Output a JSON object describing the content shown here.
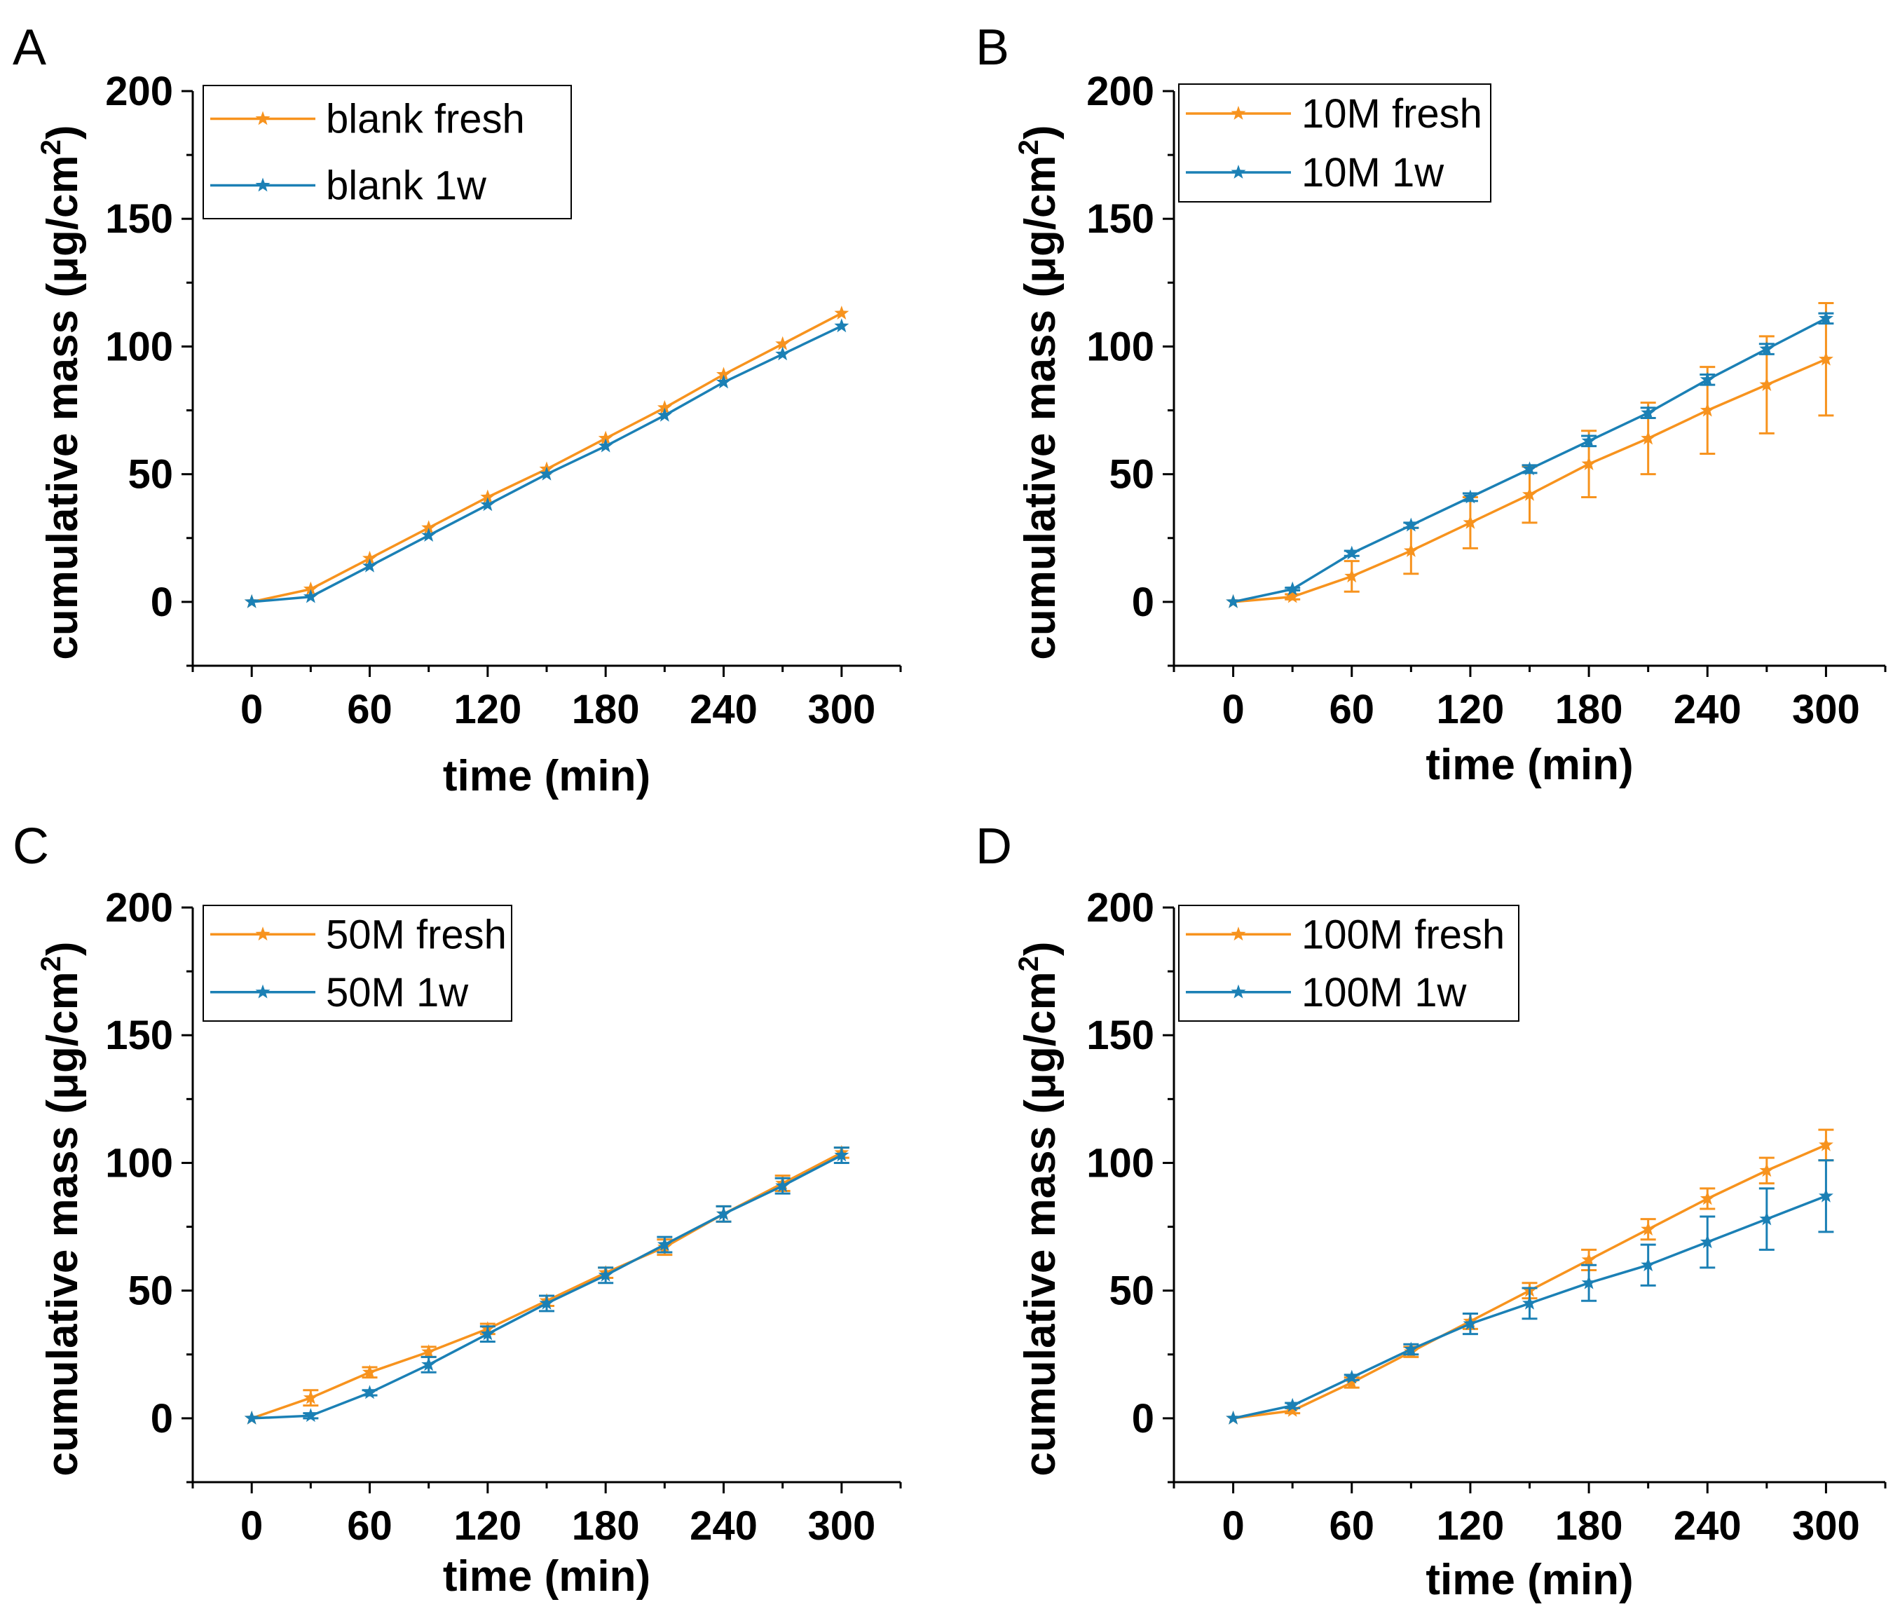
{
  "colors": {
    "fresh": "#F7931E",
    "oneweek": "#1B80B5",
    "axis": "#000000"
  },
  "chart_data": [
    {
      "panel": "A",
      "type": "line",
      "xlabel": "time (min)",
      "ylabel": "cumulative mass",
      "ylabel_unit_open": "(μg/cm",
      "ylabel_unit_sup": "2",
      "ylabel_unit_close": ")",
      "xlim": [
        -30,
        330
      ],
      "ylim": [
        -25,
        200
      ],
      "xticks": [
        0,
        60,
        120,
        180,
        240,
        300
      ],
      "yticks": [
        0,
        50,
        100,
        150,
        200
      ],
      "x": [
        0,
        30,
        60,
        90,
        120,
        150,
        180,
        210,
        240,
        270,
        300
      ],
      "series": [
        {
          "name": "blank fresh",
          "color_key": "fresh",
          "values": [
            0,
            5,
            17,
            29,
            41,
            52,
            64,
            76,
            89,
            101,
            113
          ],
          "errors": [
            0,
            0,
            0,
            0,
            0,
            0,
            0,
            0,
            0,
            0,
            0
          ]
        },
        {
          "name": "blank 1w",
          "color_key": "oneweek",
          "values": [
            0,
            2,
            14,
            26,
            38,
            50,
            61,
            73,
            86,
            97,
            108
          ],
          "errors": [
            0,
            0,
            0,
            0,
            0,
            0,
            0,
            0,
            0,
            0,
            0
          ]
        }
      ]
    },
    {
      "panel": "B",
      "type": "line",
      "xlabel": "time (min)",
      "ylabel": "cumulative mass",
      "ylabel_unit_open": "(μg/cm",
      "ylabel_unit_sup": "2",
      "ylabel_unit_close": ")",
      "xlim": [
        -30,
        330
      ],
      "ylim": [
        -25,
        200
      ],
      "xticks": [
        0,
        60,
        120,
        180,
        240,
        300
      ],
      "yticks": [
        0,
        50,
        100,
        150,
        200
      ],
      "x": [
        0,
        30,
        60,
        90,
        120,
        150,
        180,
        210,
        240,
        270,
        300
      ],
      "series": [
        {
          "name": "10M fresh",
          "color_key": "fresh",
          "values": [
            0,
            2,
            10,
            20,
            31,
            42,
            54,
            64,
            75,
            85,
            95
          ],
          "errors": [
            0,
            1,
            6,
            9,
            10,
            11,
            13,
            14,
            17,
            19,
            22
          ]
        },
        {
          "name": "10M 1w",
          "color_key": "oneweek",
          "values": [
            0,
            5,
            19,
            30,
            41,
            52,
            63,
            74,
            87,
            99,
            111
          ],
          "errors": [
            0,
            0.5,
            1,
            1,
            1.5,
            1.5,
            2,
            2,
            2,
            2,
            2
          ]
        }
      ]
    },
    {
      "panel": "C",
      "type": "line",
      "xlabel": "time (min)",
      "ylabel": "cumulative mass",
      "ylabel_unit_open": "(μg/cm",
      "ylabel_unit_sup": "2",
      "ylabel_unit_close": ")",
      "xlim": [
        -30,
        330
      ],
      "ylim": [
        -25,
        200
      ],
      "xticks": [
        0,
        60,
        120,
        180,
        240,
        300
      ],
      "yticks": [
        0,
        50,
        100,
        150,
        200
      ],
      "x": [
        0,
        30,
        60,
        90,
        120,
        150,
        180,
        210,
        240,
        270,
        300
      ],
      "series": [
        {
          "name": "50M fresh",
          "color_key": "fresh",
          "values": [
            0,
            8,
            18,
            26,
            35,
            46,
            57,
            67,
            80,
            92,
            104
          ],
          "errors": [
            0,
            3,
            2,
            2,
            2,
            2,
            2,
            3,
            3,
            3,
            2
          ]
        },
        {
          "name": "50M 1w",
          "color_key": "oneweek",
          "values": [
            0,
            1,
            10,
            21,
            33,
            45,
            56,
            68,
            80,
            91,
            103
          ],
          "errors": [
            0,
            1,
            1,
            3,
            3,
            3,
            3,
            3,
            3,
            3,
            3
          ]
        }
      ]
    },
    {
      "panel": "D",
      "type": "line",
      "xlabel": "time (min)",
      "ylabel": "cumulative mass",
      "ylabel_unit_open": "(μg/cm",
      "ylabel_unit_sup": "2",
      "ylabel_unit_close": ")",
      "xlim": [
        -30,
        330
      ],
      "ylim": [
        -25,
        200
      ],
      "xticks": [
        0,
        60,
        120,
        180,
        240,
        300
      ],
      "yticks": [
        0,
        50,
        100,
        150,
        200
      ],
      "x": [
        0,
        30,
        60,
        90,
        120,
        150,
        180,
        210,
        240,
        270,
        300
      ],
      "series": [
        {
          "name": "100M fresh",
          "color_key": "fresh",
          "values": [
            0,
            3,
            14,
            26,
            38,
            50,
            62,
            74,
            86,
            97,
            107
          ],
          "errors": [
            0,
            1,
            2,
            2,
            3,
            3,
            4,
            4,
            4,
            5,
            6
          ]
        },
        {
          "name": "100M 1w",
          "color_key": "oneweek",
          "values": [
            0,
            5,
            16,
            27,
            37,
            45,
            53,
            60,
            69,
            78,
            87
          ],
          "errors": [
            0,
            1,
            1,
            2,
            4,
            6,
            7,
            8,
            10,
            12,
            14
          ]
        }
      ]
    }
  ]
}
